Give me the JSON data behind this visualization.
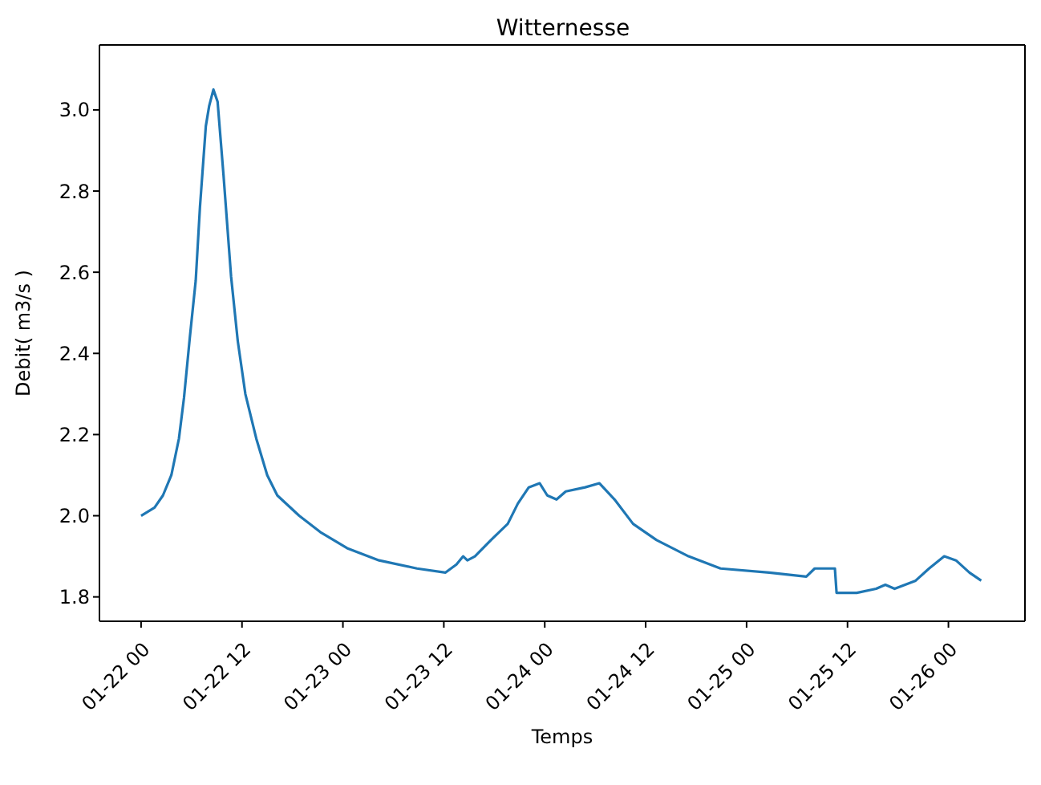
{
  "chart_data": {
    "type": "line",
    "title": "Witternesse",
    "xlabel": "Temps",
    "ylabel": "Debit( m3/s )",
    "x": [
      "--01-22T00:00",
      "--01-22T01:36",
      "--01-22T02:36",
      "--01-22T03:36",
      "--01-22T04:30",
      "--01-22T05:06",
      "--01-22T05:48",
      "--01-22T06:30",
      "--01-22T07:00",
      "--01-22T07:42",
      "--01-22T08:06",
      "--01-22T08:36",
      "--01-22T09:06",
      "--01-22T09:48",
      "--01-22T10:42",
      "--01-22T11:30",
      "--01-22T12:24",
      "--01-22T13:42",
      "--01-22T15:00",
      "--01-22T16:12",
      "--01-22T18:48",
      "--01-22T21:18",
      "--01-23T00:30",
      "--01-23T04:18",
      "--01-23T08:48",
      "--01-23T12:12",
      "--01-23T13:30",
      "--01-23T14:18",
      "--01-23T14:48",
      "--01-23T15:42",
      "--01-23T17:36",
      "--01-23T19:36",
      "--01-23T20:48",
      "--01-23T22:06",
      "--01-23T23:24",
      "--01-24T00:18",
      "--01-24T01:24",
      "--01-24T02:30",
      "--01-24T04:48",
      "--01-24T06:30",
      "--01-24T08:18",
      "--01-24T10:30",
      "--01-24T13:18",
      "--01-24T17:06",
      "--01-24T20:54",
      "--01-25T02:42",
      "--01-25T07:06",
      "--01-25T08:06",
      "--01-25T10:30",
      "--01-25T10:42",
      "--01-25T13:06",
      "--01-25T15:24",
      "--01-25T16:30",
      "--01-25T17:36",
      "--01-25T20:06",
      "--01-25T21:42",
      "--01-25T23:30",
      "--01-26T00:54",
      "--01-26T02:30",
      "--01-26T03:54"
    ],
    "series": [
      {
        "color": "#1f77b4",
        "values": [
          2.0,
          2.02,
          2.05,
          2.1,
          2.19,
          2.29,
          2.44,
          2.58,
          2.76,
          2.96,
          3.01,
          3.05,
          3.02,
          2.84,
          2.59,
          2.43,
          2.3,
          2.19,
          2.1,
          2.05,
          2.0,
          1.96,
          1.92,
          1.89,
          1.87,
          1.86,
          1.88,
          1.9,
          1.89,
          1.9,
          1.94,
          1.98,
          2.03,
          2.07,
          2.08,
          2.05,
          2.04,
          2.06,
          2.07,
          2.08,
          2.04,
          1.98,
          1.94,
          1.9,
          1.87,
          1.86,
          1.85,
          1.87,
          1.87,
          1.81,
          1.81,
          1.82,
          1.83,
          1.82,
          1.84,
          1.87,
          1.9,
          1.89,
          1.86,
          1.84
        ]
      }
    ],
    "xlim": [
      "--01-21T19:03",
      "--01-26T09:06"
    ],
    "xticks": [
      {
        "value": "--01-22T00:00",
        "label": "01-22 00"
      },
      {
        "value": "--01-22T12:00",
        "label": "01-22 12"
      },
      {
        "value": "--01-23T00:00",
        "label": "01-23 00"
      },
      {
        "value": "--01-23T12:00",
        "label": "01-23 12"
      },
      {
        "value": "--01-24T00:00",
        "label": "01-24 00"
      },
      {
        "value": "--01-24T12:00",
        "label": "01-24 12"
      },
      {
        "value": "--01-25T00:00",
        "label": "01-25 00"
      },
      {
        "value": "--01-25T12:00",
        "label": "01-25 12"
      },
      {
        "value": "--01-26T00:00",
        "label": "01-26 00"
      }
    ],
    "ylim": [
      1.74,
      3.16
    ],
    "yticks": [
      {
        "value": 1.8,
        "label": "1.8"
      },
      {
        "value": 2.0,
        "label": "2.0"
      },
      {
        "value": 2.2,
        "label": "2.2"
      },
      {
        "value": 2.4,
        "label": "2.4"
      },
      {
        "value": 2.6,
        "label": "2.6"
      },
      {
        "value": 2.8,
        "label": "2.8"
      },
      {
        "value": 3.0,
        "label": "3.0"
      }
    ],
    "line_style": "solid",
    "marker": "none"
  }
}
